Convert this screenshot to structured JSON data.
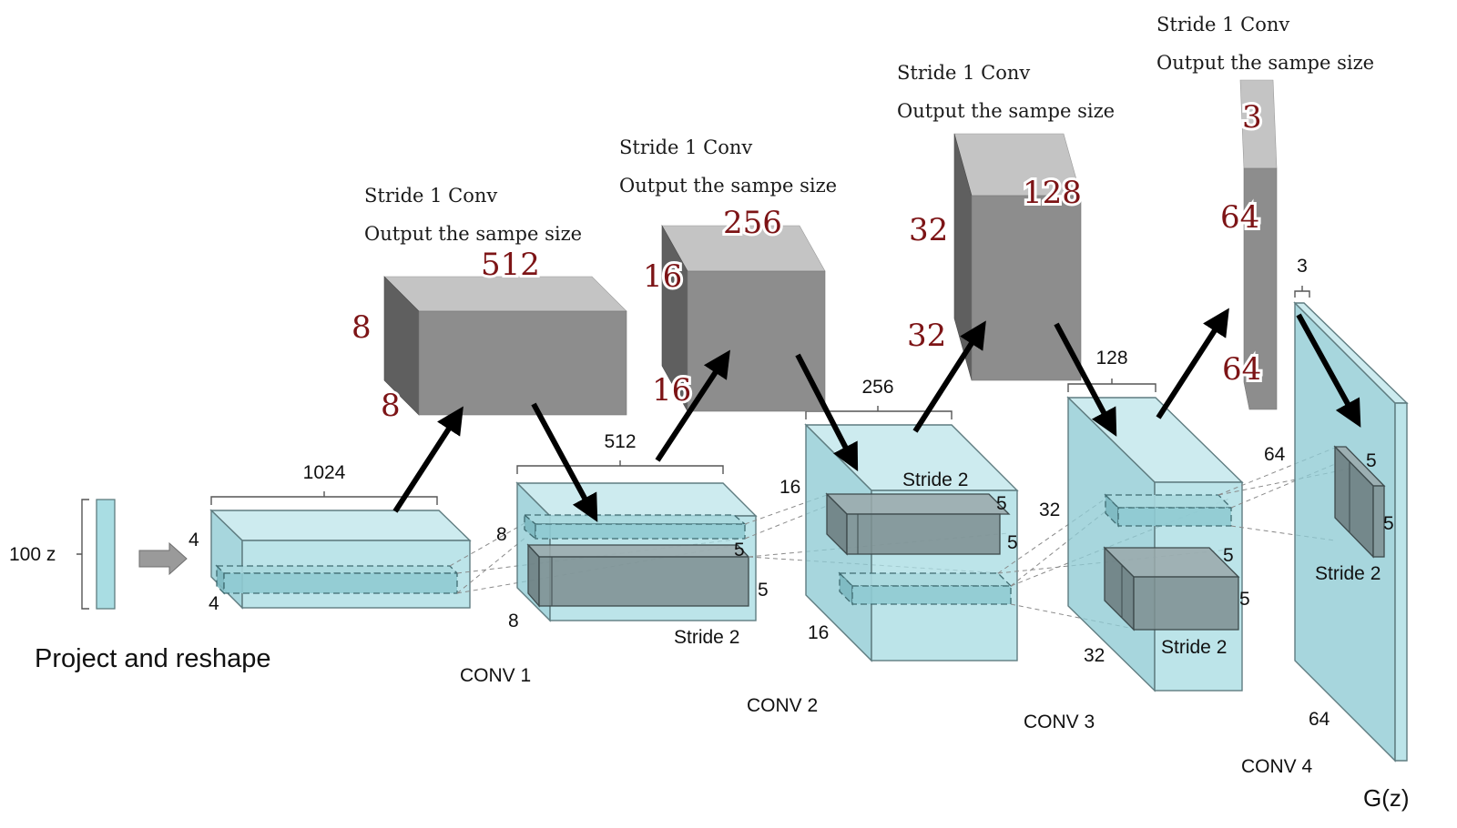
{
  "input": {
    "label": "100 z"
  },
  "project": {
    "title": "Project and reshape",
    "depth": "1024",
    "height": "4",
    "width": "4"
  },
  "layers": [
    {
      "name": "CONV 1",
      "depth": "512",
      "height": "8",
      "width": "8",
      "kernel_h": "5",
      "kernel_w": "5",
      "stride": "Stride 2"
    },
    {
      "name": "CONV 2",
      "depth": "256",
      "height": "16",
      "width": "16",
      "kernel_h": "5",
      "kernel_w": "5",
      "stride": "Stride 2"
    },
    {
      "name": "CONV 3",
      "depth": "128",
      "height": "32",
      "width": "32",
      "kernel_h": "5",
      "kernel_w": "5",
      "stride": "Stride 2"
    },
    {
      "name": "CONV 4",
      "depth": "3",
      "height": "64",
      "width": "64",
      "kernel_h": "5",
      "kernel_w": "5",
      "stride": "Stride 2"
    }
  ],
  "output": {
    "label": "G(z)"
  },
  "stride1_blocks": [
    {
      "note_line1": "Stride 1 Conv",
      "note_line2": "Output the sampe size",
      "depth": "512",
      "height": "8",
      "width": "8"
    },
    {
      "note_line1": "Stride 1 Conv",
      "note_line2": "Output the sampe size",
      "depth": "256",
      "height": "16",
      "width": "16"
    },
    {
      "note_line1": "Stride 1 Conv",
      "note_line2": "Output the sampe size",
      "depth": "128",
      "height": "32",
      "width": "32"
    },
    {
      "note_line1": "Stride 1 Conv",
      "note_line2": "Output the sampe size",
      "depth": "3",
      "height": "64",
      "width": "64"
    }
  ],
  "colors": {
    "feature_map": "#a9dde3",
    "kernel": "#7e8e90",
    "gray_block": "#8d8d8d",
    "accent_numbers": "#7d1416",
    "arrows": "#000000"
  }
}
